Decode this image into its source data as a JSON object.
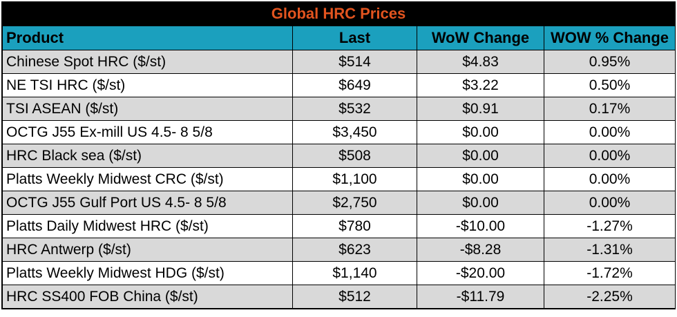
{
  "table": {
    "title": "Global HRC Prices",
    "headers": [
      "Product",
      "Last",
      "WoW Change",
      "WOW % Change"
    ],
    "rows": [
      [
        "Chinese Spot HRC ($/st)",
        "$514",
        "$4.83",
        "0.95%"
      ],
      [
        "NE TSI HRC ($/st)",
        "$649",
        "$3.22",
        "0.50%"
      ],
      [
        "TSI ASEAN ($/st)",
        "$532",
        "$0.91",
        "0.17%"
      ],
      [
        "OCTG J55 Ex-mill US 4.5- 8 5/8",
        "$3,450",
        "$0.00",
        "0.00%"
      ],
      [
        "HRC Black sea ($/st)",
        "$508",
        "$0.00",
        "0.00%"
      ],
      [
        "Platts Weekly Midwest CRC ($/st)",
        "$1,100",
        "$0.00",
        "0.00%"
      ],
      [
        "OCTG J55 Gulf Port US 4.5- 8 5/8",
        "$2,750",
        "$0.00",
        "0.00%"
      ],
      [
        "Platts Daily Midwest HRC ($/st)",
        "$780",
        "-$10.00",
        "-1.27%"
      ],
      [
        "HRC Antwerp ($/st)",
        "$623",
        "-$8.28",
        "-1.31%"
      ],
      [
        "Platts Weekly Midwest HDG ($/st)",
        "$1,140",
        "-$20.00",
        "-1.72%"
      ],
      [
        "HRC SS400 FOB China ($/st)",
        "$512",
        "-$11.79",
        "-2.25%"
      ]
    ]
  },
  "colors": {
    "title_background": "#000000",
    "title_text": "#e2541f",
    "header_background": "#1ba0be",
    "shaded_row": "#d9d9d9",
    "plain_row": "#ffffff"
  }
}
